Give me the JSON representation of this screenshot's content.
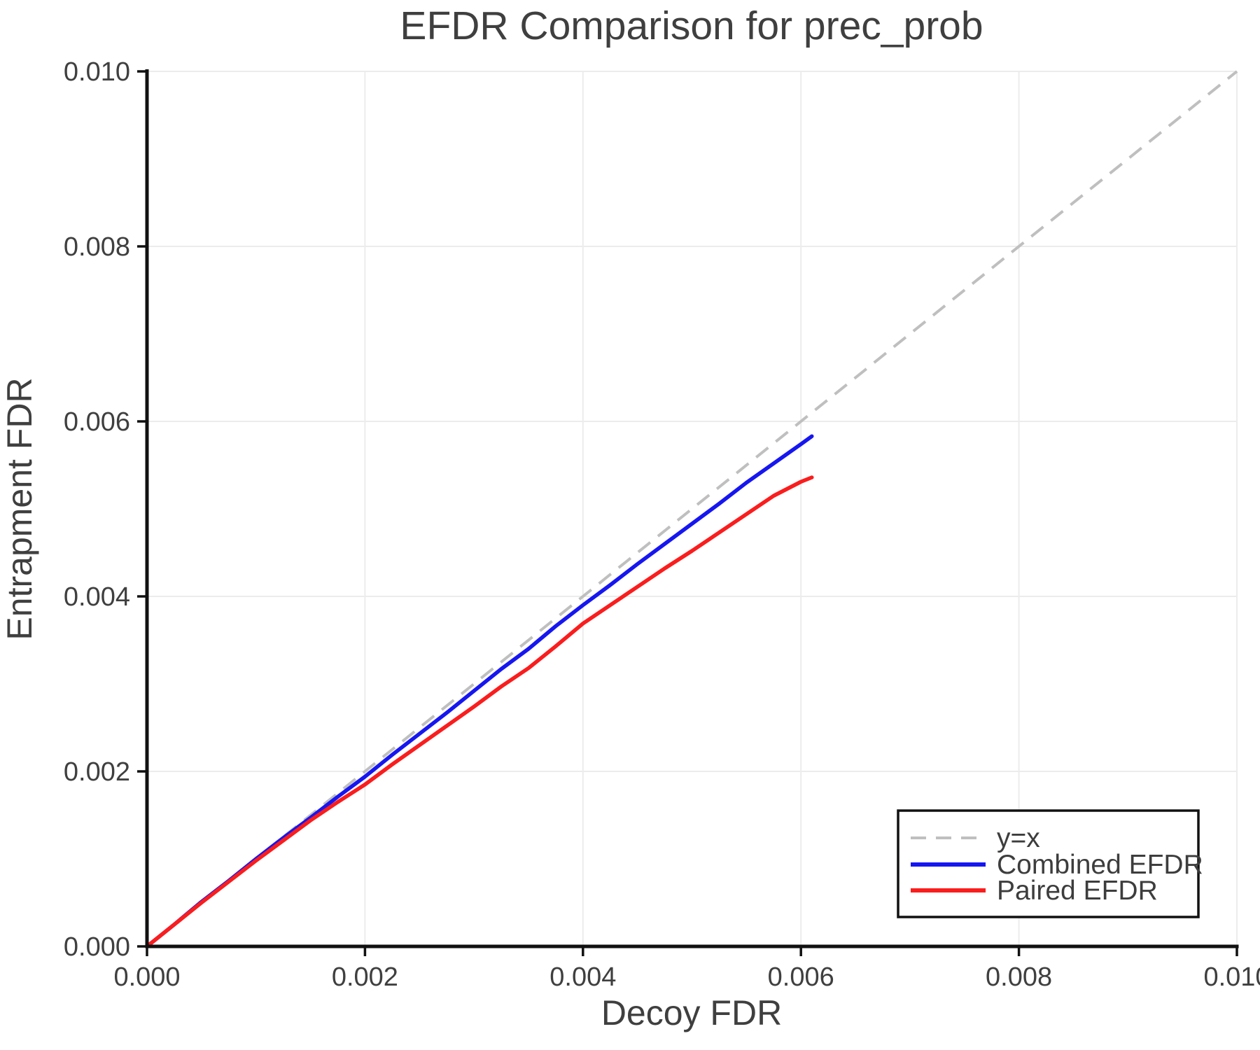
{
  "chart_data": {
    "type": "line",
    "title": "EFDR Comparison for prec_prob",
    "xlabel": "Decoy FDR",
    "ylabel": "Entrapment FDR",
    "xlim": [
      0.0,
      0.01
    ],
    "ylim": [
      0.0,
      0.01
    ],
    "xticks": [
      0.0,
      0.002,
      0.004,
      0.006,
      0.008,
      0.01
    ],
    "yticks": [
      0.0,
      0.002,
      0.004,
      0.006,
      0.008,
      0.01
    ],
    "tick_decimals": 3,
    "grid": true,
    "legend_position": "lower right",
    "identity_line": {
      "label": "y=x",
      "color": "#bfbfbf",
      "dashed": true,
      "x": [
        0.0,
        0.01
      ],
      "y": [
        0.0,
        0.01
      ]
    },
    "x": [
      0.0,
      0.00025,
      0.0005,
      0.00075,
      0.001,
      0.00125,
      0.0015,
      0.00175,
      0.002,
      0.00225,
      0.0025,
      0.00275,
      0.003,
      0.00325,
      0.0035,
      0.00375,
      0.004,
      0.00425,
      0.0045,
      0.00475,
      0.005,
      0.00525,
      0.0055,
      0.00575,
      0.006,
      0.0061
    ],
    "series": [
      {
        "name": "Combined EFDR",
        "color": "#1616f0",
        "values": [
          0.0,
          0.00025,
          0.00051,
          0.00075,
          0.001,
          0.00124,
          0.00147,
          0.00171,
          0.00194,
          0.00219,
          0.00243,
          0.00267,
          0.00292,
          0.00317,
          0.0034,
          0.00366,
          0.0039,
          0.00413,
          0.00437,
          0.0046,
          0.00483,
          0.00506,
          0.0053,
          0.00552,
          0.00574,
          0.00583
        ]
      },
      {
        "name": "Paired EFDR",
        "color": "#fa1d1d",
        "values": [
          0.0,
          0.00025,
          0.0005,
          0.00074,
          0.00098,
          0.00121,
          0.00144,
          0.00165,
          0.00185,
          0.00208,
          0.0023,
          0.00252,
          0.00274,
          0.00297,
          0.00318,
          0.00343,
          0.00369,
          0.0039,
          0.00411,
          0.00432,
          0.00452,
          0.00473,
          0.00494,
          0.00515,
          0.00531,
          0.00536
        ]
      }
    ]
  },
  "styles": {
    "text_color": "#3f3f3f",
    "grid_color": "#ececec",
    "spine_color": "#111111",
    "legend_border": "#111111",
    "legend_background": "#ffffff"
  }
}
